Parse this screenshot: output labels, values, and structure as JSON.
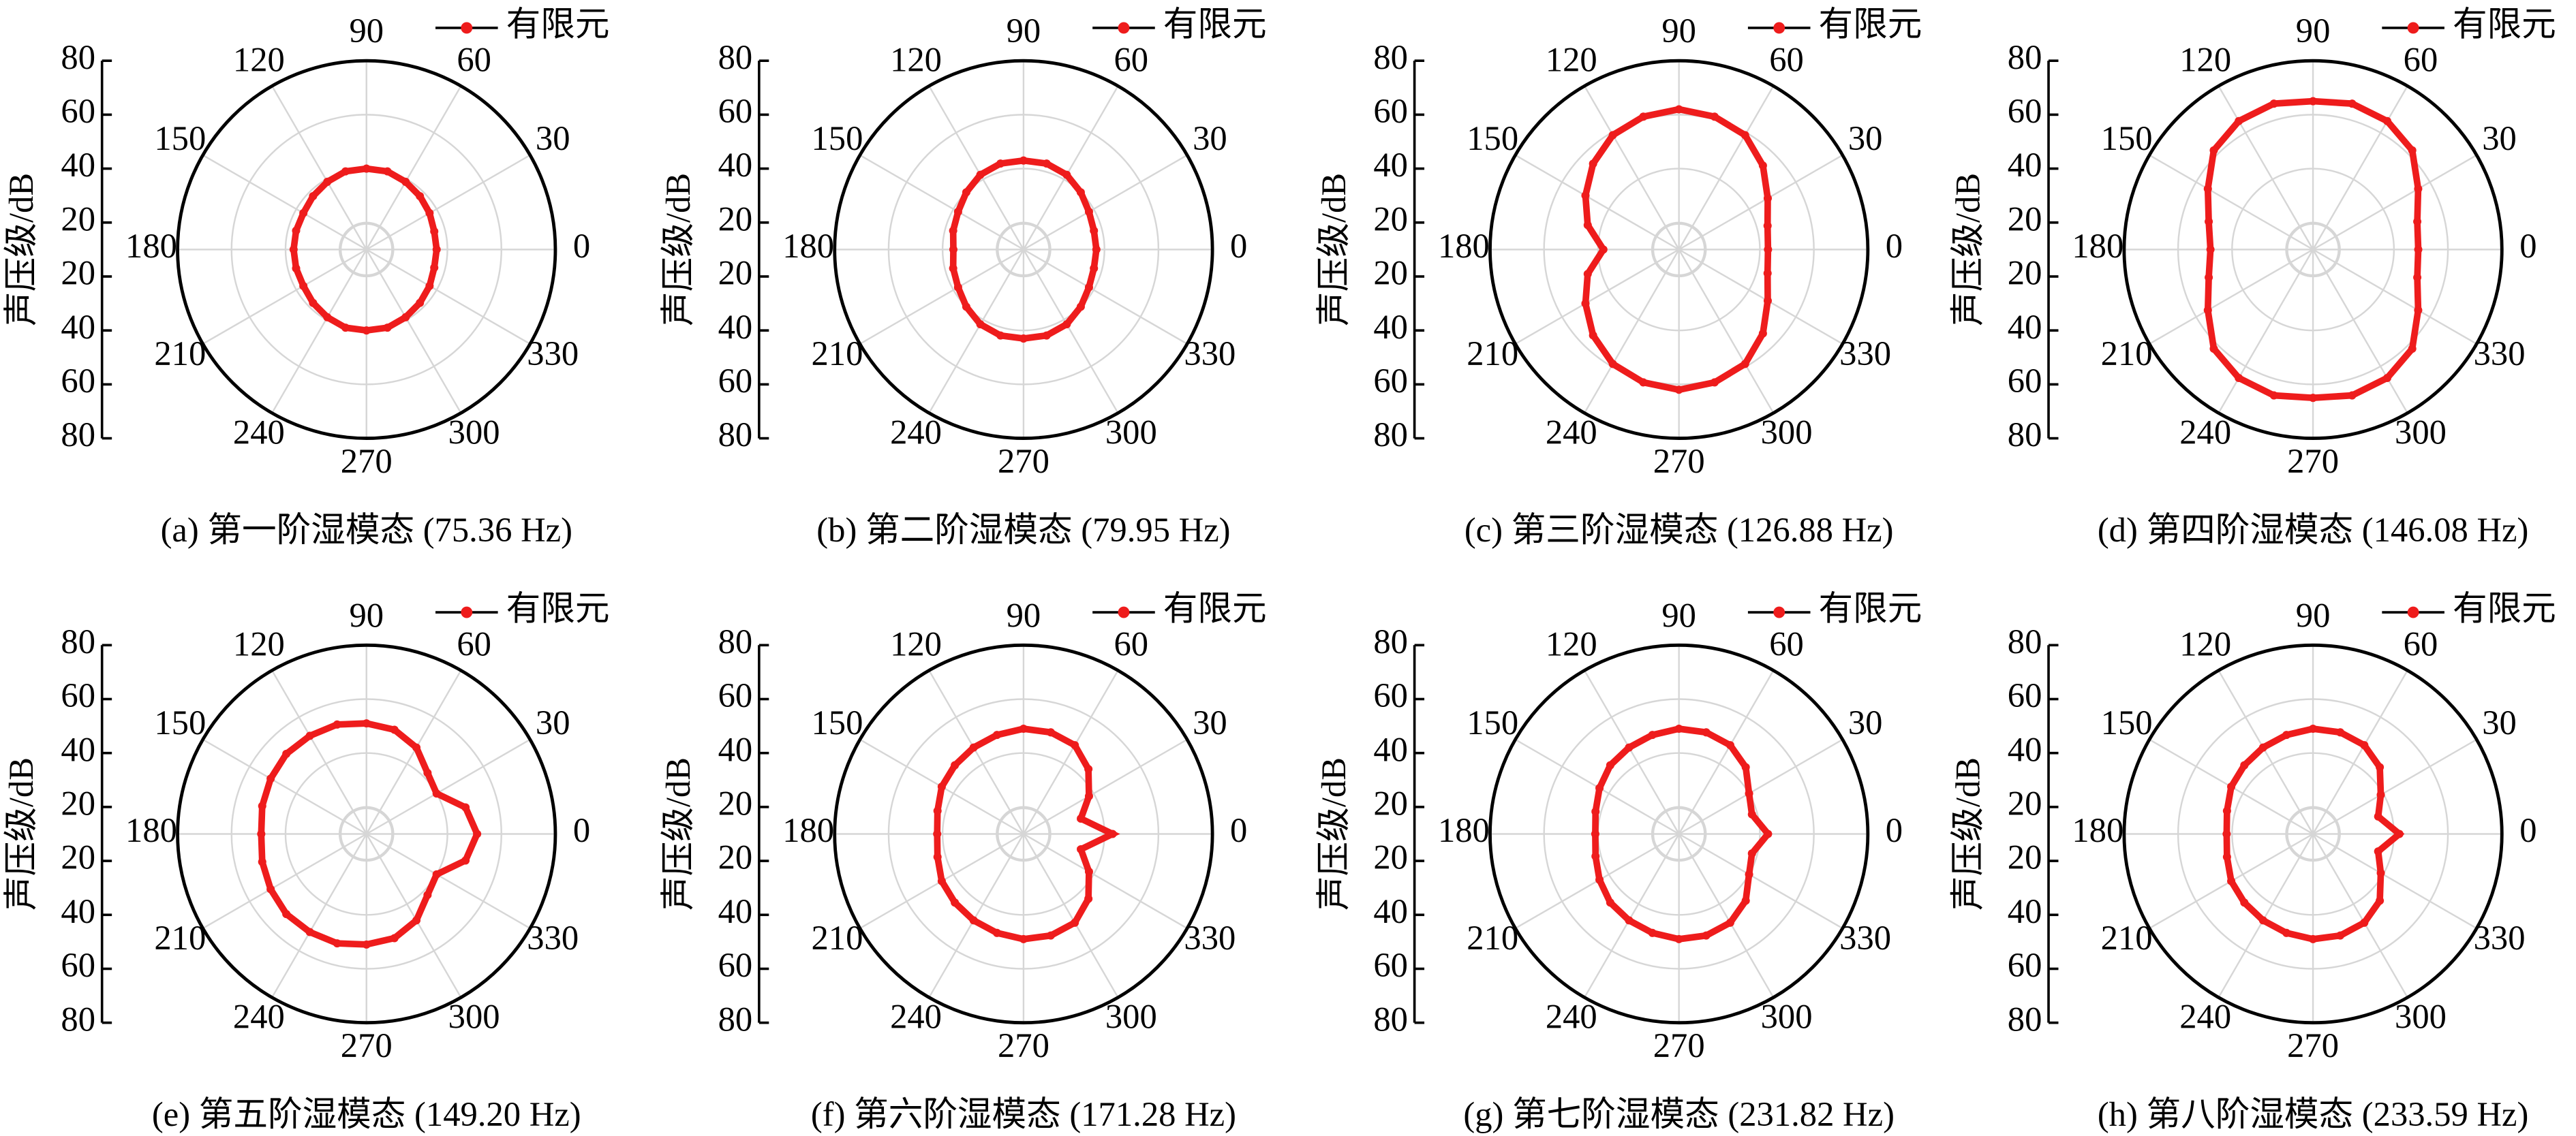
{
  "chart_data": [
    {
      "type": "polar",
      "title": "(a) 第一阶湿模态 (75.36 Hz)",
      "ylabel": "声压级/dB",
      "ylim": [
        10,
        80
      ],
      "yticks": [
        20,
        40,
        60,
        80
      ],
      "xticks": [
        0,
        30,
        60,
        90,
        120,
        150,
        180,
        210,
        240,
        270,
        300,
        330
      ],
      "grid": true,
      "x": [
        0,
        15,
        30,
        45,
        60,
        75,
        90,
        105,
        120,
        135,
        150,
        165,
        180,
        195,
        210,
        225,
        240,
        255,
        270,
        285,
        300,
        315,
        330,
        345
      ],
      "series": [
        {
          "name": "有限元",
          "color": "#ee1c1c",
          "values": [
            36,
            36,
            37,
            38,
            39,
            40,
            40,
            40,
            39,
            38,
            37,
            37,
            37,
            37,
            37,
            38,
            39,
            40,
            40,
            40,
            39,
            38,
            37,
            36
          ]
        }
      ]
    },
    {
      "type": "polar",
      "title": "(b) 第二阶湿模态 (79.95 Hz)",
      "ylabel": "声压级/dB",
      "ylim": [
        10,
        80
      ],
      "yticks": [
        20,
        40,
        60,
        80
      ],
      "xticks": [
        0,
        30,
        60,
        90,
        120,
        150,
        180,
        210,
        240,
        270,
        300,
        330
      ],
      "grid": true,
      "x": [
        0,
        15,
        30,
        45,
        60,
        75,
        90,
        105,
        120,
        135,
        150,
        165,
        180,
        195,
        210,
        225,
        240,
        255,
        270,
        285,
        300,
        315,
        330,
        345
      ],
      "series": [
        {
          "name": "有限元",
          "color": "#ee1c1c",
          "values": [
            37,
            37,
            38,
            40,
            42,
            43,
            43,
            43,
            42,
            40,
            38,
            37,
            36,
            37,
            38,
            40,
            42,
            43,
            43,
            43,
            42,
            40,
            38,
            37
          ]
        }
      ]
    },
    {
      "type": "polar",
      "title": "(c) 第三阶湿模态 (126.88 Hz)",
      "ylabel": "声压级/dB",
      "ylim": [
        10,
        80
      ],
      "yticks": [
        20,
        40,
        60,
        80
      ],
      "xticks": [
        0,
        30,
        60,
        90,
        120,
        150,
        180,
        210,
        240,
        270,
        300,
        330
      ],
      "grid": true,
      "x": [
        0,
        15,
        30,
        45,
        60,
        75,
        90,
        105,
        120,
        135,
        150,
        165,
        180,
        195,
        210,
        225,
        240,
        255,
        270,
        285,
        300,
        315,
        330,
        345
      ],
      "series": [
        {
          "name": "有限元",
          "color": "#ee1c1c",
          "values": [
            43,
            44,
            48,
            54,
            59,
            61,
            62,
            61,
            59,
            55,
            50,
            45,
            38,
            45,
            50,
            55,
            59,
            61,
            62,
            61,
            59,
            54,
            48,
            44
          ]
        }
      ]
    },
    {
      "type": "polar",
      "title": "(d) 第四阶湿模态 (146.08 Hz)",
      "ylabel": "声压级/dB",
      "ylim": [
        10,
        80
      ],
      "yticks": [
        20,
        40,
        60,
        80
      ],
      "xticks": [
        0,
        30,
        60,
        90,
        120,
        150,
        180,
        210,
        240,
        270,
        300,
        330
      ],
      "grid": true,
      "x": [
        0,
        15,
        30,
        45,
        60,
        75,
        90,
        105,
        120,
        135,
        150,
        165,
        180,
        195,
        210,
        225,
        240,
        255,
        270,
        285,
        300,
        315,
        330,
        345
      ],
      "series": [
        {
          "name": "有限元",
          "color": "#ee1c1c",
          "values": [
            49,
            50,
            55,
            62,
            65,
            66,
            65,
            66,
            65,
            62,
            55,
            50,
            48,
            50,
            55,
            62,
            65,
            66,
            65,
            66,
            65,
            62,
            55,
            50
          ]
        }
      ]
    },
    {
      "type": "polar",
      "title": "(e) 第五阶湿模态 (149.20 Hz)",
      "ylabel": "声压级/dB",
      "ylim": [
        10,
        80
      ],
      "yticks": [
        20,
        40,
        60,
        80
      ],
      "xticks": [
        0,
        30,
        60,
        90,
        120,
        150,
        180,
        210,
        240,
        270,
        300,
        330
      ],
      "grid": true,
      "x": [
        0,
        15,
        30,
        45,
        60,
        75,
        90,
        105,
        120,
        135,
        150,
        165,
        180,
        195,
        210,
        225,
        240,
        255,
        270,
        285,
        300,
        315,
        330,
        345
      ],
      "series": [
        {
          "name": "有限元",
          "color": "#ee1c1c",
          "values": [
            51,
            48,
            40,
            42,
            47,
            50,
            51,
            52,
            52,
            52,
            51,
            50,
            49,
            50,
            51,
            52,
            52,
            52,
            51,
            50,
            47,
            42,
            40,
            48
          ]
        }
      ]
    },
    {
      "type": "polar",
      "title": "(f) 第六阶湿模态 (171.28 Hz)",
      "ylabel": "声压级/dB",
      "ylim": [
        10,
        80
      ],
      "yticks": [
        20,
        40,
        60,
        80
      ],
      "xticks": [
        0,
        30,
        60,
        90,
        120,
        150,
        180,
        210,
        240,
        270,
        300,
        330
      ],
      "grid": true,
      "x": [
        0,
        15,
        30,
        45,
        60,
        75,
        90,
        105,
        120,
        135,
        150,
        165,
        180,
        195,
        210,
        225,
        240,
        255,
        270,
        285,
        300,
        315,
        330,
        345
      ],
      "series": [
        {
          "name": "有限元",
          "color": "#ee1c1c",
          "values": [
            43,
            32,
            38,
            44,
            48,
            49,
            49,
            48,
            47,
            46,
            45,
            43,
            42,
            43,
            45,
            46,
            47,
            48,
            49,
            49,
            48,
            44,
            38,
            32
          ]
        }
      ]
    },
    {
      "type": "polar",
      "title": "(g) 第七阶湿模态 (231.82 Hz)",
      "ylabel": "声压级/dB",
      "ylim": [
        10,
        80
      ],
      "yticks": [
        20,
        40,
        60,
        80
      ],
      "xticks": [
        0,
        30,
        60,
        90,
        120,
        150,
        180,
        210,
        240,
        270,
        300,
        330
      ],
      "grid": true,
      "x": [
        0,
        15,
        30,
        45,
        60,
        75,
        90,
        105,
        120,
        135,
        150,
        165,
        180,
        195,
        210,
        225,
        240,
        255,
        270,
        285,
        300,
        315,
        330,
        345
      ],
      "series": [
        {
          "name": "有限元",
          "color": "#ee1c1c",
          "values": [
            43,
            38,
            40,
            45,
            48,
            49,
            49,
            48,
            47,
            46,
            44,
            42,
            41,
            42,
            44,
            46,
            47,
            48,
            49,
            49,
            48,
            45,
            40,
            38
          ]
        }
      ]
    },
    {
      "type": "polar",
      "title": "(h) 第八阶湿模态 (233.59 Hz)",
      "ylabel": "声压级/dB",
      "ylim": [
        10,
        80
      ],
      "yticks": [
        20,
        40,
        60,
        80
      ],
      "xticks": [
        0,
        30,
        60,
        90,
        120,
        150,
        180,
        210,
        240,
        270,
        300,
        330
      ],
      "grid": true,
      "x": [
        0,
        15,
        30,
        45,
        60,
        75,
        90,
        105,
        120,
        135,
        150,
        165,
        180,
        195,
        210,
        225,
        240,
        255,
        270,
        285,
        300,
        315,
        330,
        345
      ],
      "series": [
        {
          "name": "有限元",
          "color": "#ee1c1c",
          "values": [
            42,
            35,
            39,
            45,
            48,
            49,
            49,
            48,
            47,
            46,
            45,
            43,
            42,
            43,
            45,
            46,
            47,
            48,
            49,
            49,
            48,
            45,
            39,
            35
          ]
        }
      ]
    }
  ]
}
